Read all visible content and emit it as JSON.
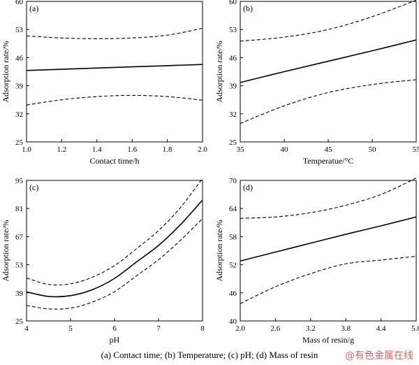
{
  "caption": "(a) Contact time; (b) Temperature; (c) pH; (d) Mass of resin",
  "watermark": "@有色金属在线",
  "chart_data": [
    {
      "type": "line",
      "panel_label": "(a)",
      "xlabel": "Contact time/h",
      "ylabel": "Adsorption rate/%",
      "xlim": [
        1.0,
        2.0
      ],
      "ylim": [
        25,
        60
      ],
      "xticks": [
        1.0,
        1.2,
        1.4,
        1.6,
        1.8,
        2.0
      ],
      "xtick_labels": [
        "1.0",
        "1.2",
        "1.4",
        "1.6",
        "1.8",
        "2.0"
      ],
      "yticks": [
        25,
        32,
        39,
        46,
        53,
        60
      ],
      "ytick_labels": [
        "25",
        "32",
        "39",
        "46",
        "53",
        "60"
      ],
      "x": [
        1.0,
        1.2,
        1.4,
        1.6,
        1.8,
        2.0
      ],
      "series": [
        {
          "style": "solid",
          "values": [
            42.8,
            43.1,
            43.4,
            43.7,
            44.0,
            44.3
          ]
        },
        {
          "style": "dashed",
          "values": [
            51.4,
            50.9,
            50.7,
            50.9,
            51.6,
            53.3
          ]
        },
        {
          "style": "dashed",
          "values": [
            34.2,
            35.5,
            36.3,
            36.6,
            36.3,
            35.4
          ]
        }
      ]
    },
    {
      "type": "line",
      "panel_label": "(b)",
      "xlabel": "Temperatue/°C",
      "ylabel": "Adsorption rate/%",
      "xlim": [
        35,
        55
      ],
      "ylim": [
        25,
        60
      ],
      "xticks": [
        35,
        40,
        45,
        50,
        55
      ],
      "xtick_labels": [
        "35",
        "40",
        "45",
        "50",
        "55"
      ],
      "yticks": [
        25,
        32,
        39,
        46,
        53,
        60
      ],
      "ytick_labels": [
        "25",
        "32",
        "39",
        "46",
        "53",
        "60"
      ],
      "x": [
        35,
        40,
        45,
        50,
        55
      ],
      "series": [
        {
          "style": "solid",
          "values": [
            39.8,
            42.5,
            45.1,
            47.7,
            50.4
          ]
        },
        {
          "style": "dashed",
          "values": [
            50.1,
            51.1,
            53.0,
            56.2,
            60.3
          ]
        },
        {
          "style": "dashed",
          "values": [
            29.6,
            34.0,
            37.3,
            39.3,
            40.5
          ]
        }
      ]
    },
    {
      "type": "line",
      "panel_label": "(c)",
      "xlabel": "pH",
      "ylabel": "Adsorption rate/%",
      "xlim": [
        4,
        8
      ],
      "ylim": [
        25,
        95
      ],
      "xticks": [
        4,
        5,
        6,
        7,
        8
      ],
      "xtick_labels": [
        "4",
        "5",
        "6",
        "7",
        "8"
      ],
      "yticks": [
        25,
        39,
        53,
        67,
        81,
        95
      ],
      "ytick_labels": [
        "25",
        "39",
        "53",
        "67",
        "81",
        "95"
      ],
      "x": [
        4.0,
        4.5,
        5.0,
        5.5,
        6.0,
        6.5,
        7.0,
        7.5,
        8.0
      ],
      "series": [
        {
          "style": "solid",
          "values": [
            39.5,
            37.2,
            37.6,
            40.6,
            46.2,
            54.4,
            62.6,
            73.0,
            85.2
          ]
        },
        {
          "style": "dashed",
          "values": [
            46.4,
            43.2,
            43.5,
            46.8,
            52.6,
            61.0,
            70.0,
            81.5,
            96.0
          ]
        },
        {
          "style": "dashed",
          "values": [
            32.7,
            31.0,
            31.4,
            34.4,
            39.6,
            47.5,
            55.5,
            65.2,
            76.0
          ]
        }
      ]
    },
    {
      "type": "line",
      "panel_label": "(d)",
      "xlabel": "Mass of resin/g",
      "ylabel": "Adsorption rate/%",
      "xlim": [
        2.0,
        5.0
      ],
      "ylim": [
        40,
        70
      ],
      "xticks": [
        2.0,
        2.6,
        3.2,
        3.8,
        4.4,
        5.0
      ],
      "xtick_labels": [
        "2.0",
        "2.6",
        "3.2",
        "3.8",
        "4.4",
        "5.0"
      ],
      "yticks": [
        40,
        46,
        52,
        58,
        64,
        70
      ],
      "ytick_labels": [
        "40",
        "46",
        "52",
        "58",
        "64",
        "70"
      ],
      "x": [
        2.0,
        2.6,
        3.2,
        3.8,
        4.4,
        5.0
      ],
      "series": [
        {
          "style": "solid",
          "values": [
            52.8,
            54.7,
            56.6,
            58.5,
            60.3,
            62.2
          ]
        },
        {
          "style": "dashed",
          "values": [
            61.9,
            62.2,
            63.1,
            64.7,
            67.0,
            70.5
          ]
        },
        {
          "style": "dashed",
          "values": [
            43.7,
            47.3,
            50.1,
            52.2,
            53.0,
            53.8
          ]
        }
      ]
    }
  ]
}
